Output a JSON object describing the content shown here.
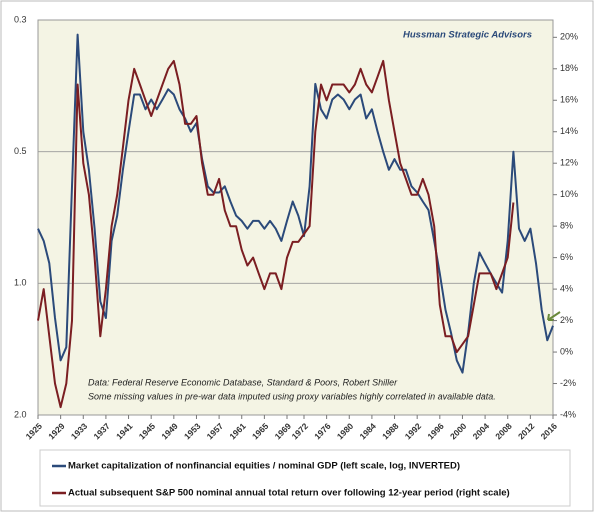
{
  "chart_data": {
    "type": "line",
    "title": "Hussman Strategic Advisors",
    "annotations": [
      "Data: Federal Reserve Economic Database, Standard & Poors, Robert Shiller",
      "Some missing values in pre-war data imputed using proxy variables highly correlated in available data."
    ],
    "x": [
      1925,
      1926,
      1927,
      1928,
      1929,
      1930,
      1931,
      1932,
      1933,
      1934,
      1935,
      1936,
      1937,
      1938,
      1939,
      1940,
      1941,
      1942,
      1943,
      1944,
      1945,
      1946,
      1947,
      1948,
      1949,
      1950,
      1951,
      1952,
      1953,
      1954,
      1955,
      1956,
      1957,
      1958,
      1959,
      1960,
      1961,
      1962,
      1963,
      1964,
      1965,
      1966,
      1967,
      1968,
      1969,
      1970,
      1971,
      1972,
      1973,
      1974,
      1975,
      1976,
      1977,
      1978,
      1979,
      1980,
      1981,
      1982,
      1983,
      1984,
      1985,
      1986,
      1987,
      1988,
      1989,
      1990,
      1991,
      1992,
      1993,
      1994,
      1995,
      1996,
      1997,
      1998,
      1999,
      2000,
      2001,
      2002,
      2003,
      2004,
      2005,
      2006,
      2007,
      2008,
      2009,
      2010,
      2011,
      2012,
      2013,
      2014,
      2015,
      2016
    ],
    "series": [
      {
        "name": "Market capitalization of nonfinancial equities / nominal GDP (left scale, log, INVERTED)",
        "color": "#2b4a7a",
        "values": [
          0.75,
          0.8,
          0.9,
          1.2,
          1.5,
          1.4,
          0.6,
          0.27,
          0.45,
          0.55,
          0.75,
          1.1,
          1.2,
          0.8,
          0.7,
          0.55,
          0.45,
          0.37,
          0.37,
          0.4,
          0.38,
          0.4,
          0.38,
          0.36,
          0.37,
          0.4,
          0.42,
          0.45,
          0.43,
          0.52,
          0.6,
          0.62,
          0.62,
          0.6,
          0.65,
          0.7,
          0.72,
          0.75,
          0.72,
          0.72,
          0.75,
          0.72,
          0.75,
          0.8,
          0.72,
          0.65,
          0.7,
          0.78,
          0.6,
          0.35,
          0.4,
          0.42,
          0.38,
          0.37,
          0.38,
          0.4,
          0.38,
          0.37,
          0.42,
          0.4,
          0.45,
          0.5,
          0.55,
          0.52,
          0.55,
          0.55,
          0.6,
          0.62,
          0.65,
          0.68,
          0.8,
          0.95,
          1.15,
          1.3,
          1.5,
          1.6,
          1.3,
          1.0,
          0.85,
          0.9,
          0.95,
          1.0,
          1.05,
          0.8,
          0.5,
          0.75,
          0.8,
          0.75,
          0.9,
          1.15,
          1.35,
          1.25
        ]
      },
      {
        "name": "Actual subsequent S&P 500 nominal annual total return over following 12-year period (right scale)",
        "color": "#7b1e22",
        "axis": "y2",
        "values": [
          2,
          4,
          1,
          -2,
          -3.5,
          -2,
          2,
          17,
          12,
          10,
          6,
          1,
          4,
          8,
          10,
          13,
          16,
          18,
          17,
          16,
          15,
          16,
          17,
          18,
          18.5,
          17,
          14.5,
          14.5,
          15,
          12,
          10,
          10,
          11,
          9,
          8,
          8,
          6.5,
          5.5,
          6,
          5,
          4,
          5,
          5,
          4,
          6,
          7,
          7,
          7.5,
          8,
          14,
          17,
          16,
          17,
          17,
          17,
          16.5,
          17,
          18,
          17,
          16.5,
          17.5,
          18.5,
          16,
          14,
          12,
          11,
          10,
          10,
          11,
          10,
          8,
          3,
          1,
          1,
          0,
          0.5,
          1,
          3,
          5,
          5,
          5,
          4,
          5,
          6,
          9.5,
          null,
          null,
          null,
          null,
          null,
          null,
          null
        ]
      }
    ],
    "xlim": [
      1925,
      2016
    ],
    "xticks": [
      1925,
      1929,
      1933,
      1937,
      1941,
      1945,
      1949,
      1953,
      1957,
      1961,
      1965,
      1969,
      1972,
      1976,
      1980,
      1984,
      1988,
      1992,
      1996,
      2000,
      2004,
      2008,
      2012,
      2016
    ],
    "ylim": [
      0.25,
      2
    ],
    "log_scale": true,
    "inverted": true,
    "yticks": [
      {
        "value": 0.25,
        "label": "0.3"
      },
      {
        "value": 0.5,
        "label": "0.5"
      },
      {
        "value": 1,
        "label": "1.0"
      },
      {
        "value": 2,
        "label": "2.0"
      }
    ],
    "y2lim": [
      -4,
      21.1
    ],
    "y2ticks": [
      {
        "value": -4,
        "label": "-4%"
      },
      {
        "value": -2,
        "label": "-2%"
      },
      {
        "value": 0,
        "label": "0%"
      },
      {
        "value": 2,
        "label": "2%"
      },
      {
        "value": 4,
        "label": "4%"
      },
      {
        "value": 6,
        "label": "6%"
      },
      {
        "value": 8,
        "label": "8%"
      },
      {
        "value": 10,
        "label": "10%"
      },
      {
        "value": 12,
        "label": "12%"
      },
      {
        "value": 14,
        "label": "14%"
      },
      {
        "value": 16,
        "label": "16%"
      },
      {
        "value": 18,
        "label": "18%"
      },
      {
        "value": 20,
        "label": "20%"
      }
    ],
    "grid": true
  }
}
